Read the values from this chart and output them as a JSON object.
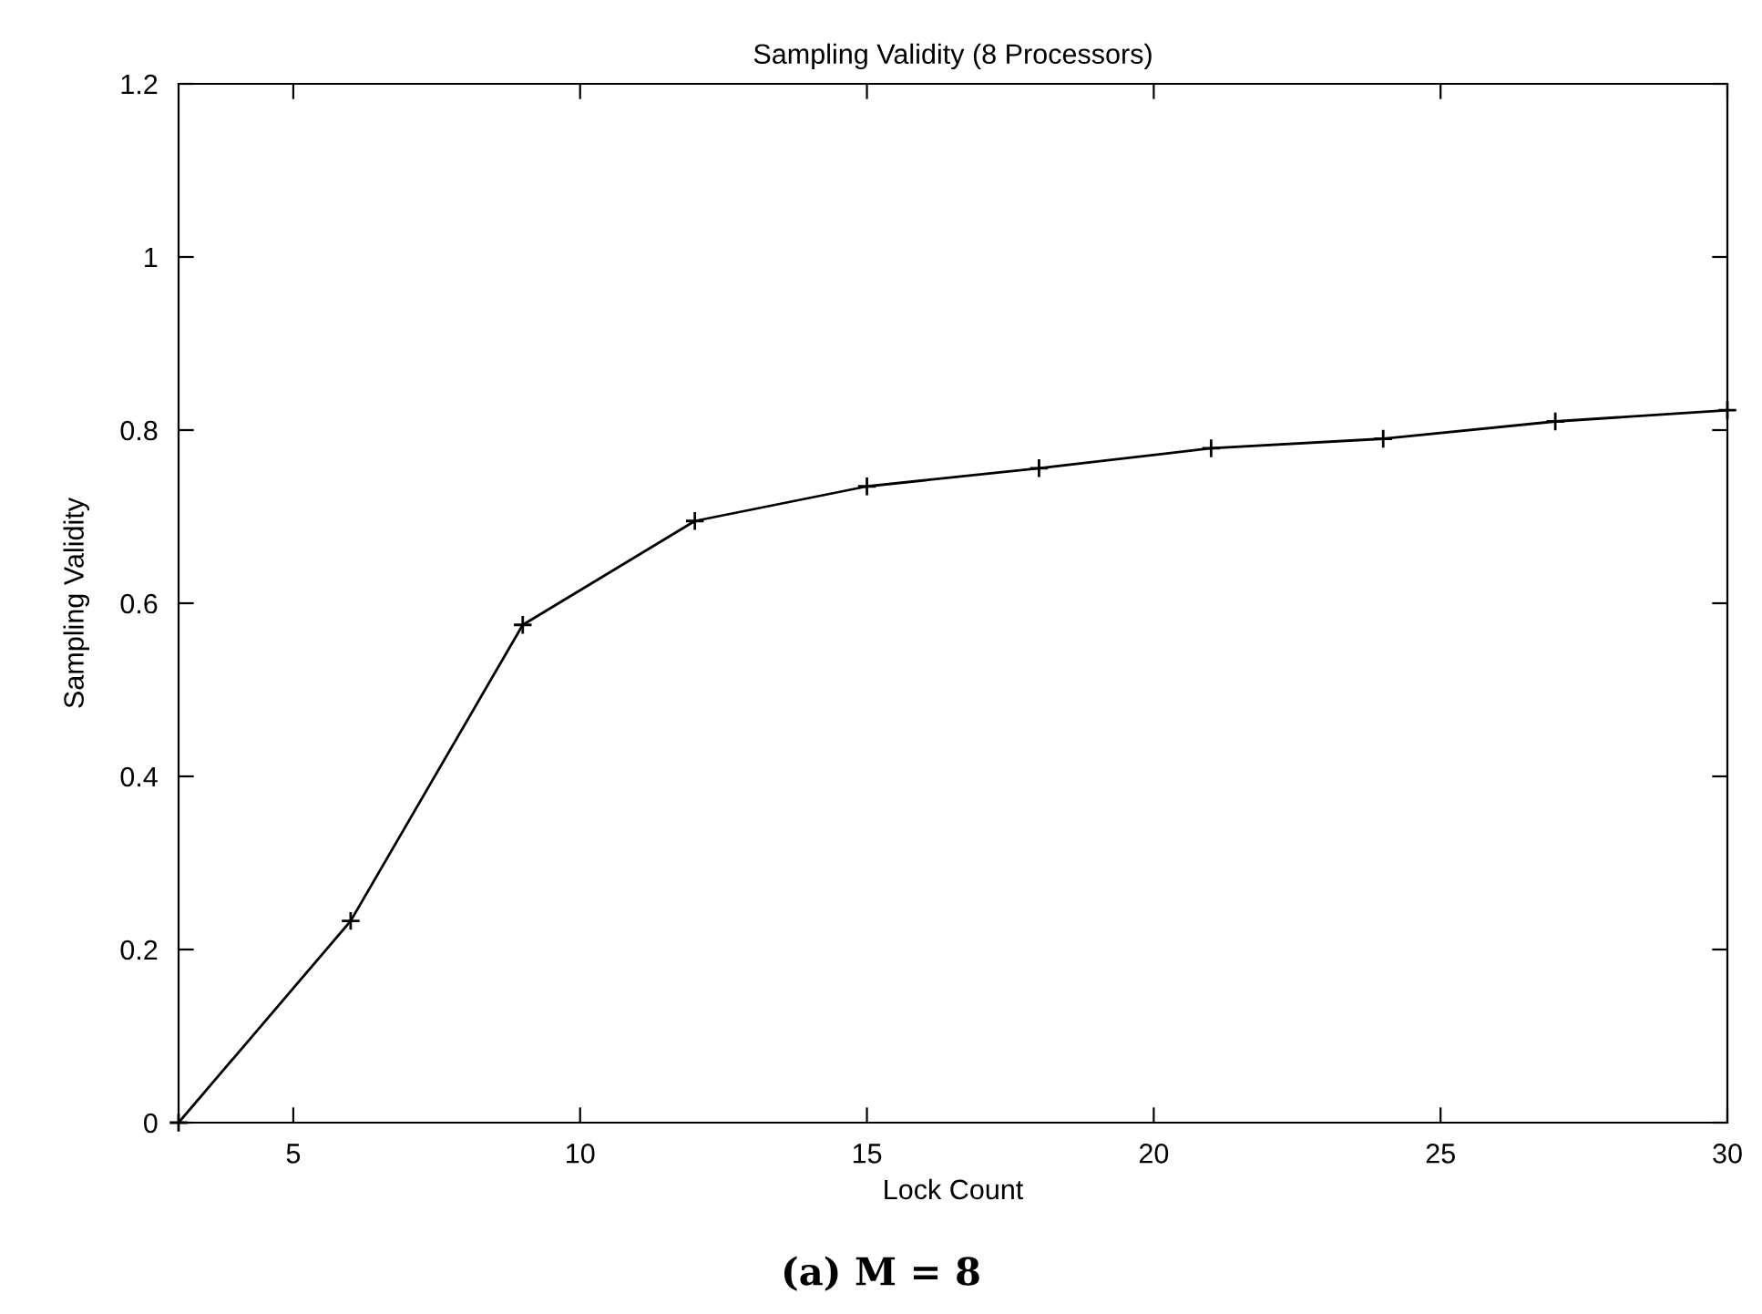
{
  "chart_data": {
    "type": "line",
    "title": "Sampling Validity (8 Processors)",
    "xlabel": "Lock Count",
    "ylabel": "Sampling Validity",
    "x": [
      3,
      6,
      9,
      12,
      15,
      18,
      21,
      24,
      27,
      30
    ],
    "series": [
      {
        "color": "#000000",
        "values": [
          0,
          0.233,
          0.575,
          0.695,
          0.735,
          0.756,
          0.779,
          0.79,
          0.81,
          0.823
        ]
      }
    ],
    "xlim": [
      3,
      30
    ],
    "xticks": [
      5,
      10,
      15,
      20,
      25,
      30
    ],
    "ylim": [
      0,
      1.2
    ],
    "yticks": [
      0,
      0.2,
      0.4,
      0.6,
      0.8,
      1,
      1.2
    ],
    "marker": "cross",
    "line_style": "solid",
    "grid": false,
    "legend": false,
    "annotations": [
      "(a) M = 8"
    ]
  }
}
